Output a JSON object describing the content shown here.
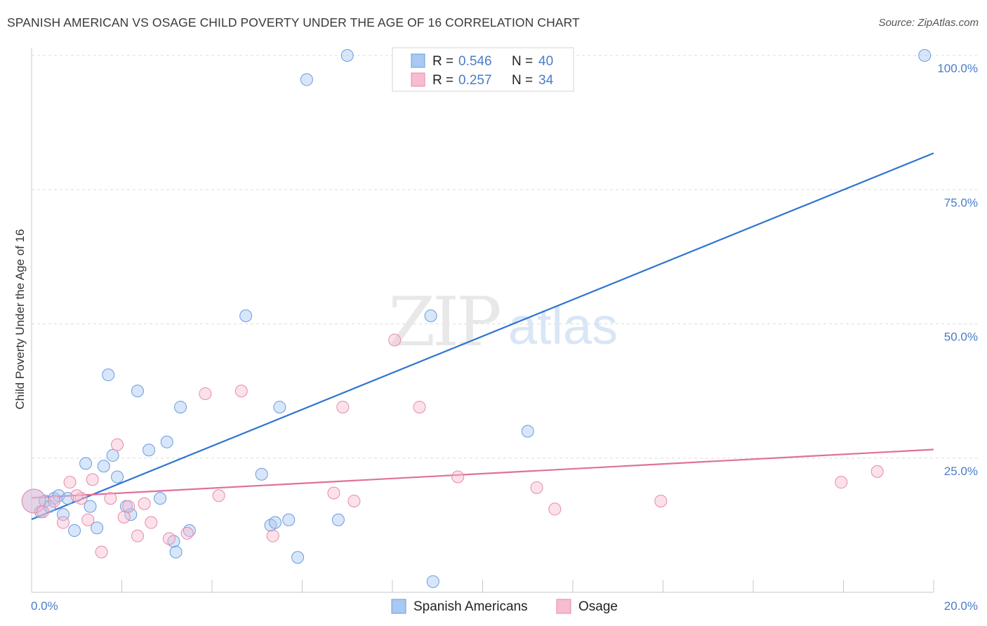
{
  "title": "SPANISH AMERICAN VS OSAGE CHILD POVERTY UNDER THE AGE OF 16 CORRELATION CHART",
  "source": "Source: ZipAtlas.com",
  "watermark": {
    "zip": "ZIP",
    "atlas": "atlas"
  },
  "colors": {
    "blue_fill": "#a9c8f2",
    "blue_stroke": "#6a9be0",
    "blue_line": "#2f74d0",
    "pink_fill": "#f6bcd0",
    "pink_stroke": "#e88aa8",
    "pink_line": "#e0709a",
    "axis_label": "#4a7cc8",
    "grid": "#dcdcdc"
  },
  "chart_data": {
    "type": "scatter",
    "title": "SPANISH AMERICAN VS OSAGE CHILD POVERTY UNDER THE AGE OF 16 CORRELATION CHART",
    "xlabel": "",
    "ylabel": "Child Poverty Under the Age of 16",
    "xlim": [
      0,
      20
    ],
    "ylim": [
      0,
      100
    ],
    "x_tick_labels": [
      "0.0%",
      "20.0%"
    ],
    "y_ticks": [
      25,
      50,
      75,
      100
    ],
    "y_tick_labels": [
      "25.0%",
      "50.0%",
      "75.0%",
      "100.0%"
    ],
    "grid": true,
    "legend_position": "top-center",
    "legend": [
      {
        "name": "Spanish Americans",
        "r_label": "R =",
        "r_value": "0.546",
        "n_label": "N =",
        "n_value": "40"
      },
      {
        "name": "Osage",
        "r_label": "R =",
        "r_value": "0.257",
        "n_label": "N =",
        "n_value": "34"
      }
    ],
    "series": [
      {
        "name": "Spanish Americans",
        "color": "blue",
        "trend": {
          "x": [
            0,
            20
          ],
          "y": [
            13.6,
            81.8
          ]
        },
        "points": [
          {
            "x": 0.05,
            "y": 17,
            "big": true
          },
          {
            "x": 0.2,
            "y": 15
          },
          {
            "x": 0.3,
            "y": 17
          },
          {
            "x": 0.5,
            "y": 17.5
          },
          {
            "x": 0.6,
            "y": 18
          },
          {
            "x": 0.7,
            "y": 14.5
          },
          {
            "x": 0.8,
            "y": 17.5
          },
          {
            "x": 0.95,
            "y": 11.5
          },
          {
            "x": 1.2,
            "y": 24
          },
          {
            "x": 1.3,
            "y": 16
          },
          {
            "x": 1.45,
            "y": 12
          },
          {
            "x": 1.6,
            "y": 23.5
          },
          {
            "x": 1.7,
            "y": 40.5
          },
          {
            "x": 1.8,
            "y": 25.5
          },
          {
            "x": 1.9,
            "y": 21.5
          },
          {
            "x": 2.1,
            "y": 16
          },
          {
            "x": 2.2,
            "y": 14.5
          },
          {
            "x": 2.35,
            "y": 37.5
          },
          {
            "x": 2.6,
            "y": 26.5
          },
          {
            "x": 2.85,
            "y": 17.5
          },
          {
            "x": 3.0,
            "y": 28
          },
          {
            "x": 3.15,
            "y": 9.5
          },
          {
            "x": 3.2,
            "y": 7.5
          },
          {
            "x": 3.3,
            "y": 34.5
          },
          {
            "x": 3.5,
            "y": 11.5
          },
          {
            "x": 4.75,
            "y": 51.5
          },
          {
            "x": 5.1,
            "y": 22
          },
          {
            "x": 5.3,
            "y": 12.5
          },
          {
            "x": 5.4,
            "y": 13
          },
          {
            "x": 5.5,
            "y": 34.5
          },
          {
            "x": 5.7,
            "y": 13.5
          },
          {
            "x": 5.9,
            "y": 6.5
          },
          {
            "x": 6.1,
            "y": 95.5
          },
          {
            "x": 6.8,
            "y": 13.5
          },
          {
            "x": 7.0,
            "y": 100
          },
          {
            "x": 8.9,
            "y": 2
          },
          {
            "x": 8.85,
            "y": 51.5
          },
          {
            "x": 11.0,
            "y": 30
          },
          {
            "x": 19.8,
            "y": 100
          },
          {
            "x": 0.4,
            "y": 16
          }
        ]
      },
      {
        "name": "Osage",
        "color": "pink",
        "trend": {
          "x": [
            0,
            20
          ],
          "y": [
            17.6,
            26.6
          ]
        },
        "points": [
          {
            "x": 0.05,
            "y": 17,
            "big": true
          },
          {
            "x": 0.25,
            "y": 15
          },
          {
            "x": 0.5,
            "y": 17
          },
          {
            "x": 0.7,
            "y": 13
          },
          {
            "x": 0.85,
            "y": 20.5
          },
          {
            "x": 1.1,
            "y": 17.5
          },
          {
            "x": 1.25,
            "y": 13.5
          },
          {
            "x": 1.35,
            "y": 21
          },
          {
            "x": 1.55,
            "y": 7.5
          },
          {
            "x": 1.75,
            "y": 17.5
          },
          {
            "x": 1.9,
            "y": 27.5
          },
          {
            "x": 2.05,
            "y": 14
          },
          {
            "x": 2.15,
            "y": 16
          },
          {
            "x": 2.35,
            "y": 10.5
          },
          {
            "x": 2.5,
            "y": 16.5
          },
          {
            "x": 2.65,
            "y": 13
          },
          {
            "x": 3.05,
            "y": 10
          },
          {
            "x": 3.45,
            "y": 11
          },
          {
            "x": 3.85,
            "y": 37
          },
          {
            "x": 4.15,
            "y": 18
          },
          {
            "x": 4.65,
            "y": 37.5
          },
          {
            "x": 5.35,
            "y": 10.5
          },
          {
            "x": 6.7,
            "y": 18.5
          },
          {
            "x": 6.9,
            "y": 34.5
          },
          {
            "x": 7.15,
            "y": 17
          },
          {
            "x": 8.05,
            "y": 47
          },
          {
            "x": 8.6,
            "y": 34.5
          },
          {
            "x": 9.45,
            "y": 21.5
          },
          {
            "x": 11.2,
            "y": 19.5
          },
          {
            "x": 11.6,
            "y": 15.5
          },
          {
            "x": 13.95,
            "y": 17
          },
          {
            "x": 17.95,
            "y": 20.5
          },
          {
            "x": 18.75,
            "y": 22.5
          },
          {
            "x": 1.0,
            "y": 18
          }
        ]
      }
    ]
  }
}
